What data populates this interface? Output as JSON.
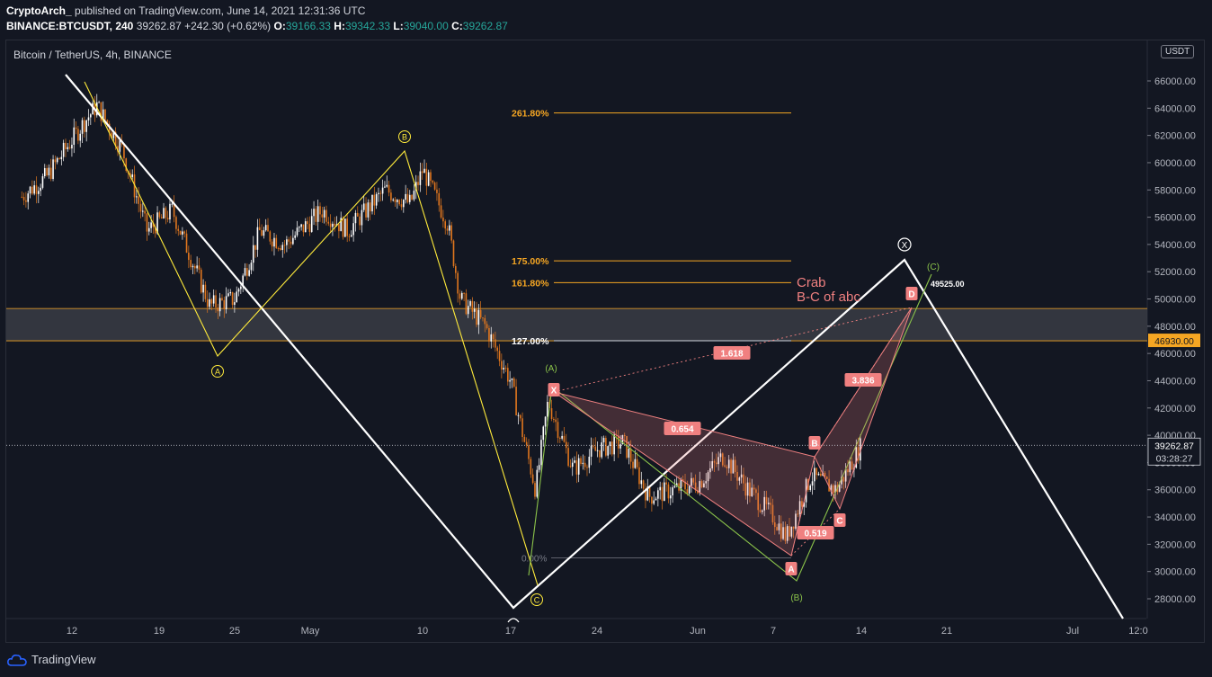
{
  "header": {
    "author": "CryptoArch_",
    "published": "published on TradingView.com, June 14, 2021 12:31:36 UTC",
    "symbol": "BINANCE:BTCUSDT, 240",
    "last": "39262.87",
    "change": "+242.30 (+0.62%)",
    "o_label": "O:",
    "o_val": "39166.33",
    "h_label": "H:",
    "h_val": "39342.33",
    "l_label": "L:",
    "l_val": "39040.00",
    "c_label": "C:",
    "c_val": "39262.87"
  },
  "legend": {
    "title": "Bitcoin / TetherUS, 4h, BINANCE"
  },
  "footer": {
    "brand": "TradingView"
  },
  "axis": {
    "currency": "USDT",
    "price_label": "39262.87",
    "countdown": "03:28:27",
    "zone_label": "46930.00"
  },
  "colors": {
    "background": "#131722",
    "up": "#ffffff",
    "down": "#e0761e",
    "fib": "#f5a623",
    "pattern": "#f08080",
    "wave": "#ffeb3b",
    "green": "#8bc34a",
    "zone": "#3a3c44"
  },
  "chart_data": {
    "type": "candlestick",
    "title": "Bitcoin / TetherUS, 4h, BINANCE",
    "ylim": [
      26000,
      67500
    ],
    "yticks": [
      "28000.00",
      "30000.00",
      "32000.00",
      "34000.00",
      "36000.00",
      "38000.00",
      "40000.00",
      "42000.00",
      "44000.00",
      "46000.00",
      "48000.00",
      "50000.00",
      "52000.00",
      "54000.00",
      "56000.00",
      "58000.00",
      "60000.00",
      "62000.00",
      "64000.00",
      "66000.00"
    ],
    "xticks": [
      "12",
      "19",
      "25",
      "May",
      "10",
      "17",
      "24",
      "Jun",
      "7",
      "14",
      "21",
      "Jul",
      "12:0"
    ],
    "price_path": [
      [
        "2021-04-08",
        57500
      ],
      [
        "2021-04-10",
        59000
      ],
      [
        "2021-04-13",
        63000
      ],
      [
        "2021-04-14",
        64200
      ],
      [
        "2021-04-16",
        61000
      ],
      [
        "2021-04-18",
        55000
      ],
      [
        "2021-04-20",
        56500
      ],
      [
        "2021-04-23",
        49500
      ],
      [
        "2021-04-25",
        50000
      ],
      [
        "2021-04-27",
        55000
      ],
      [
        "2021-04-29",
        54000
      ],
      [
        "2021-05-02",
        56500
      ],
      [
        "2021-05-04",
        55000
      ],
      [
        "2021-05-07",
        58000
      ],
      [
        "2021-05-09",
        57000
      ],
      [
        "2021-05-10",
        59500
      ],
      [
        "2021-05-12",
        55500
      ],
      [
        "2021-05-13",
        50000
      ],
      [
        "2021-05-15",
        48000
      ],
      [
        "2021-05-17",
        44000
      ],
      [
        "2021-05-19",
        36000
      ],
      [
        "2021-05-20",
        42500
      ],
      [
        "2021-05-22",
        37500
      ],
      [
        "2021-05-24",
        39000
      ],
      [
        "2021-05-26",
        39500
      ],
      [
        "2021-05-28",
        35500
      ],
      [
        "2021-05-30",
        36000
      ],
      [
        "2021-06-01",
        36500
      ],
      [
        "2021-06-03",
        38500
      ],
      [
        "2021-06-05",
        36000
      ],
      [
        "2021-06-07",
        34000
      ],
      [
        "2021-06-08",
        32500
      ],
      [
        "2021-06-10",
        37000
      ],
      [
        "2021-06-12",
        36000
      ],
      [
        "2021-06-14",
        39262
      ]
    ],
    "fib_levels": [
      {
        "label": "261.80%",
        "price": 63650
      },
      {
        "label": "175.00%",
        "price": 52800
      },
      {
        "label": "161.80%",
        "price": 51200
      },
      {
        "label": "127.00%",
        "price": 46930
      },
      {
        "label": "0.00%",
        "price": 31000
      }
    ],
    "zone": {
      "from": 46930,
      "to": 49300
    },
    "harmonic": {
      "name": "Crab",
      "subtitle": "B-C of abc",
      "points": [
        "X",
        "A",
        "B",
        "C",
        "D"
      ],
      "ratios": [
        "0.654",
        "1.618",
        "0.519",
        "3.836"
      ],
      "target_label": "49525.00"
    },
    "waves_yellow": [
      "A",
      "B",
      "C"
    ],
    "waves_green": [
      "(A)",
      "(B)",
      "(C)"
    ],
    "wave_x": "X"
  }
}
